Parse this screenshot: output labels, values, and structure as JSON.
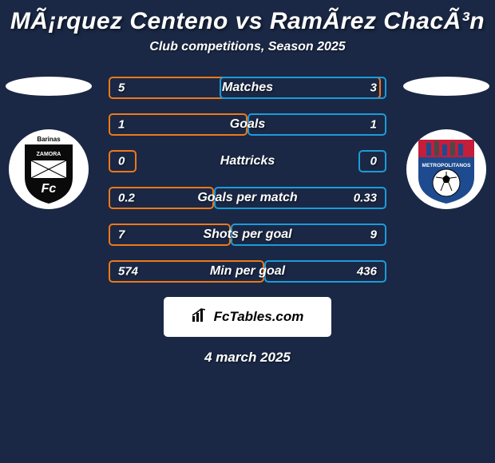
{
  "header": {
    "title": "MÃ¡rquez Centeno vs RamÃ­rez ChacÃ³n",
    "subtitle": "Club competitions, Season 2025"
  },
  "colors": {
    "left": "#f07818",
    "right": "#1e9bd8",
    "bg": "#1a2845",
    "white": "#ffffff"
  },
  "stats": [
    {
      "label": "Matches",
      "left_val": "5",
      "right_val": "3",
      "left_pct": 98,
      "right_pct": 60
    },
    {
      "label": "Goals",
      "left_val": "1",
      "right_val": "1",
      "left_pct": 50,
      "right_pct": 50
    },
    {
      "label": "Hattricks",
      "left_val": "0",
      "right_val": "0",
      "left_pct": 10,
      "right_pct": 10
    },
    {
      "label": "Goals per match",
      "left_val": "0.2",
      "right_val": "0.33",
      "left_pct": 38,
      "right_pct": 62
    },
    {
      "label": "Shots per goal",
      "left_val": "7",
      "right_val": "9",
      "left_pct": 44,
      "right_pct": 56
    },
    {
      "label": "Min per goal",
      "left_val": "574",
      "right_val": "436",
      "left_pct": 56,
      "right_pct": 44
    }
  ],
  "teams": {
    "left": {
      "name": "Zamora FC",
      "crest_top_text": "Barinas",
      "crest_mid_text": "ZAMORA"
    },
    "right": {
      "name": "Metropolitanos",
      "crest_text": "METROPOLITANOS"
    }
  },
  "footer": {
    "site": "FcTables.com",
    "date": "4 march 2025"
  }
}
